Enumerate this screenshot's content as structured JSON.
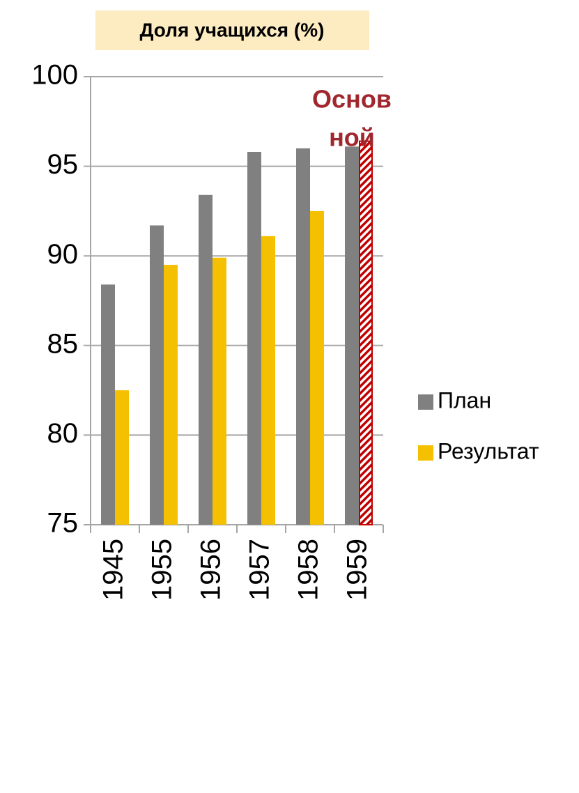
{
  "chart_data": {
    "type": "bar",
    "title": "Доля учащихся (%)",
    "categories": [
      "1945",
      "1955",
      "1956",
      "1957",
      "1958",
      "1959"
    ],
    "series": [
      {
        "name": "План",
        "color": "#808080",
        "values": [
          88.4,
          91.7,
          93.4,
          95.8,
          96.0,
          96.1
        ]
      },
      {
        "name": "Результат",
        "color": "#f5c000",
        "values": [
          82.5,
          89.5,
          89.9,
          91.1,
          92.5,
          96.4
        ]
      }
    ],
    "ylim": [
      75,
      100
    ],
    "yticks": [
      75,
      80,
      85,
      90,
      95,
      100
    ],
    "grid": true,
    "legend": "right",
    "annotation": {
      "lines": [
        "Основ",
        "ной"
      ],
      "color": "#a0272d",
      "category": "1959",
      "series": "Результат",
      "hatch_color": "#c00000"
    }
  }
}
